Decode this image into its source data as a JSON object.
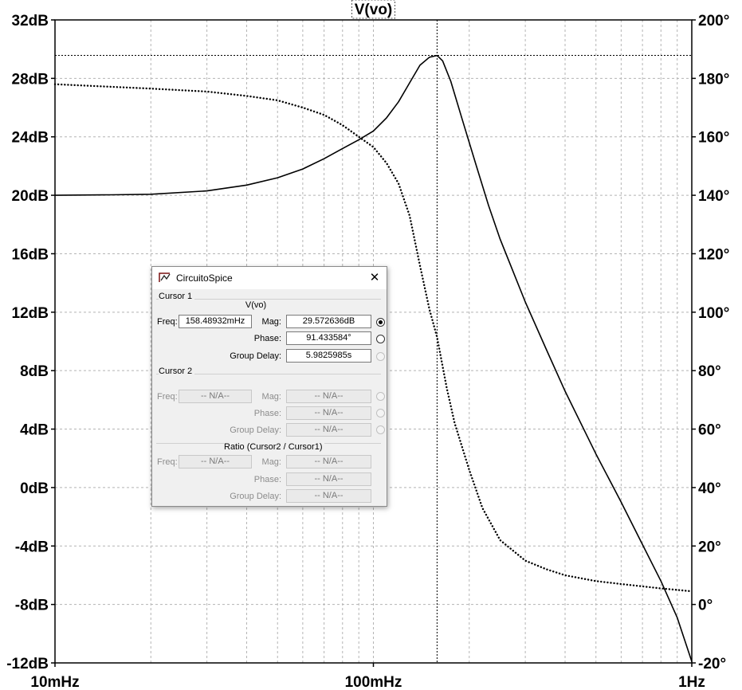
{
  "chart_data": {
    "type": "line",
    "title": "V(vo)",
    "x_scale": "log",
    "x_range_hz": [
      0.01,
      1
    ],
    "x_ticks": [
      {
        "hz": 0.01,
        "label": "10mHz"
      },
      {
        "hz": 0.1,
        "label": "100mHz"
      },
      {
        "hz": 1,
        "label": "1Hz"
      }
    ],
    "y_left": {
      "unit": "dB",
      "range": [
        -12,
        32
      ],
      "ticks": [
        "32dB",
        "28dB",
        "24dB",
        "20dB",
        "16dB",
        "12dB",
        "8dB",
        "4dB",
        "0dB",
        "-4dB",
        "-8dB",
        "-12dB"
      ]
    },
    "y_right": {
      "unit": "°",
      "range": [
        -20,
        200
      ],
      "ticks": [
        "200°",
        "180°",
        "160°",
        "140°",
        "120°",
        "100°",
        "80°",
        "60°",
        "40°",
        "20°",
        "0°",
        "-20°"
      ]
    },
    "grid": true,
    "series": [
      {
        "axis": "left",
        "style": "solid",
        "points": [
          [
            0.01,
            20.0
          ],
          [
            0.015,
            20.03
          ],
          [
            0.02,
            20.07
          ],
          [
            0.03,
            20.3
          ],
          [
            0.04,
            20.7
          ],
          [
            0.05,
            21.2
          ],
          [
            0.06,
            21.8
          ],
          [
            0.07,
            22.5
          ],
          [
            0.08,
            23.2
          ],
          [
            0.09,
            23.8
          ],
          [
            0.1,
            24.4
          ],
          [
            0.11,
            25.3
          ],
          [
            0.12,
            26.4
          ],
          [
            0.13,
            27.7
          ],
          [
            0.14,
            28.9
          ],
          [
            0.15,
            29.45
          ],
          [
            0.1585,
            29.57
          ],
          [
            0.165,
            29.2
          ],
          [
            0.175,
            27.8
          ],
          [
            0.19,
            25.2
          ],
          [
            0.21,
            22.1
          ],
          [
            0.23,
            19.3
          ],
          [
            0.25,
            17.0
          ],
          [
            0.3,
            12.7
          ],
          [
            0.35,
            9.4
          ],
          [
            0.4,
            6.6
          ],
          [
            0.5,
            2.3
          ],
          [
            0.6,
            -1.0
          ],
          [
            0.7,
            -3.9
          ],
          [
            0.8,
            -6.4
          ],
          [
            0.9,
            -8.9
          ],
          [
            1.0,
            -11.9
          ]
        ]
      },
      {
        "axis": "right",
        "style": "dotted",
        "points": [
          [
            0.01,
            178
          ],
          [
            0.02,
            176.5
          ],
          [
            0.03,
            175.5
          ],
          [
            0.04,
            174
          ],
          [
            0.05,
            172.5
          ],
          [
            0.06,
            170
          ],
          [
            0.07,
            167.5
          ],
          [
            0.08,
            164
          ],
          [
            0.09,
            160
          ],
          [
            0.1,
            156.5
          ],
          [
            0.11,
            151
          ],
          [
            0.12,
            144
          ],
          [
            0.13,
            133
          ],
          [
            0.14,
            116
          ],
          [
            0.15,
            101
          ],
          [
            0.1585,
            91.43
          ],
          [
            0.17,
            74
          ],
          [
            0.18,
            62
          ],
          [
            0.2,
            46
          ],
          [
            0.22,
            33
          ],
          [
            0.25,
            22
          ],
          [
            0.3,
            15
          ],
          [
            0.35,
            12
          ],
          [
            0.4,
            10
          ],
          [
            0.5,
            8
          ],
          [
            0.6,
            7
          ],
          [
            0.8,
            5.5
          ],
          [
            1.0,
            4.5
          ]
        ]
      }
    ],
    "cursor": {
      "hz": 0.15848932,
      "db": 29.572636
    }
  },
  "dialog": {
    "title": "CircuitoSpice",
    "close_glyph": "✕",
    "cursor1": {
      "label": "Cursor 1",
      "trace": "V(vo)",
      "freq_label": "Freq:",
      "freq": "158.48932mHz",
      "mag_label": "Mag:",
      "mag": "29.572636dB",
      "phase_label": "Phase:",
      "phase": "91.433584°",
      "gd_label": "Group Delay:",
      "gd": "5.9825985s"
    },
    "cursor2": {
      "label": "Cursor 2",
      "freq_label": "Freq:",
      "freq": "-- N/A--",
      "mag_label": "Mag:",
      "mag": "-- N/A--",
      "phase_label": "Phase:",
      "phase": "-- N/A--",
      "gd_label": "Group Delay:",
      "gd": "-- N/A--"
    },
    "ratio": {
      "label": "Ratio (Cursor2 / Cursor1)",
      "freq_label": "Freq:",
      "freq": "-- N/A--",
      "mag_label": "Mag:",
      "mag": "-- N/A--",
      "phase_label": "Phase:",
      "phase": "-- N/A--",
      "gd_label": "Group Delay:",
      "gd": "-- N/A--"
    }
  }
}
